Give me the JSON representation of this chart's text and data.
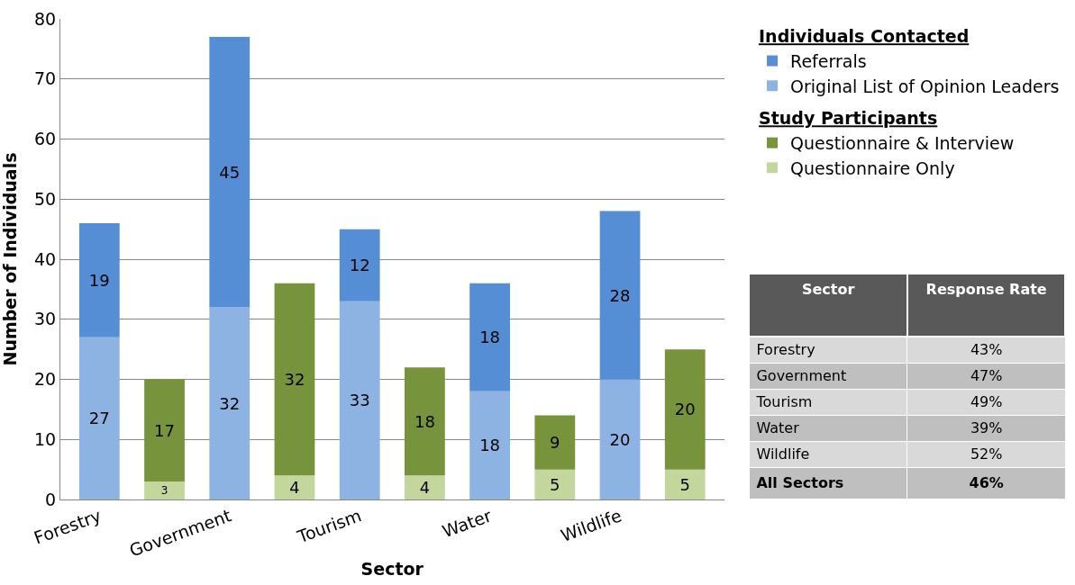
{
  "chart_data": [
    {
      "type": "bar",
      "stacked": true,
      "xlabel": "Sector",
      "ylabel": "Number of Individuals",
      "categories": [
        "Forestry",
        null,
        "Government",
        null,
        "Tourism",
        null,
        "Water",
        null,
        "Wildlife",
        null
      ],
      "annotations": [
        "Individuals Contacted",
        "Study Participants"
      ],
      "series": [
        {
          "name": "Original List of Opinion Leaders",
          "color": "#8db3e2",
          "values": [
            27,
            null,
            32,
            null,
            33,
            null,
            18,
            null,
            20,
            null
          ]
        },
        {
          "name": "Referrals",
          "color": "#558ed5",
          "values": [
            19,
            null,
            45,
            null,
            12,
            null,
            18,
            null,
            28,
            null
          ]
        },
        {
          "name": "Questionnaire Only",
          "color": "#c3d69b",
          "values": [
            null,
            3,
            null,
            4,
            null,
            4,
            null,
            5,
            null,
            5
          ]
        },
        {
          "name": "Questionnaire & Interview",
          "color": "#77933c",
          "values": [
            null,
            17,
            null,
            32,
            null,
            18,
            null,
            9,
            null,
            20
          ]
        }
      ],
      "ylim": [
        0,
        80
      ],
      "yticks": [
        0,
        10,
        20,
        30,
        40,
        50,
        60,
        70,
        80
      ],
      "grid": "y",
      "legend": "top right",
      "data_labels": true
    },
    {
      "type": "other",
      "xlabel": "Sector",
      "ylabel": "Response Rate",
      "categories": [
        "Forestry",
        "Government",
        "Tourism",
        "Water",
        "Wildlife",
        "All Sectors"
      ],
      "value_labels": [
        "43%",
        "47%",
        "49%",
        "39%",
        "52%",
        "46%"
      ]
    }
  ]
}
